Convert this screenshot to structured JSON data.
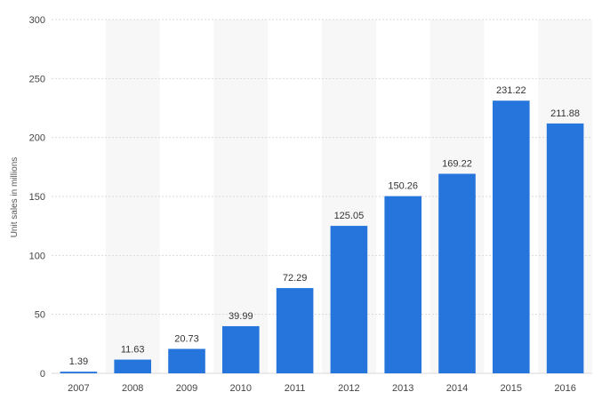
{
  "chart_data": {
    "type": "bar",
    "categories": [
      "2007",
      "2008",
      "2009",
      "2010",
      "2011",
      "2012",
      "2013",
      "2014",
      "2015",
      "2016"
    ],
    "values": [
      1.39,
      11.63,
      20.73,
      39.99,
      72.29,
      125.05,
      150.26,
      169.22,
      231.22,
      211.88
    ],
    "value_labels": [
      "1.39",
      "11.63",
      "20.73",
      "39.99",
      "72.29",
      "125.05",
      "150.26",
      "169.22",
      "231.22",
      "211.88"
    ],
    "title": "",
    "xlabel": "",
    "ylabel": "Unit sales in millions",
    "ylim": [
      0,
      300
    ],
    "yticks": [
      0,
      50,
      100,
      150,
      200,
      250,
      300
    ],
    "grid": true,
    "bar_color": "#2575dc",
    "band_color": "#f7f7f7",
    "grid_color": "#d9d9d9"
  }
}
